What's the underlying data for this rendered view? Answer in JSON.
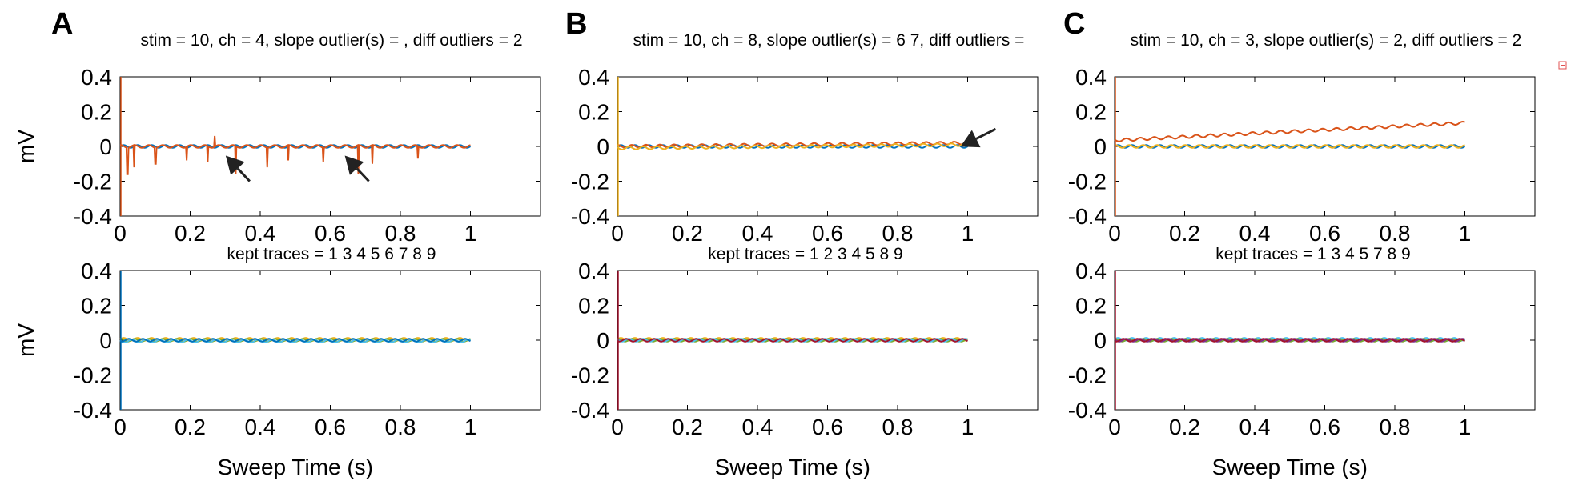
{
  "chart_data": [
    {
      "panel": "A",
      "type": "line",
      "title": "stim = 10, ch = 4, slope outlier(s) =  , diff outliers = 2",
      "ylabel": "mV",
      "xlim": [
        0,
        1.2
      ],
      "ylim": [
        -0.4,
        0.4
      ],
      "xticks": [
        "0",
        "0.2",
        "0.4",
        "0.6",
        "0.8",
        "1"
      ],
      "yticks": [
        "0.4",
        "0.2",
        "0",
        "-0.2",
        "-0.4"
      ],
      "x_range": [
        0,
        1
      ],
      "series": [
        {
          "color": "#0072BD",
          "baseline": 0.0,
          "drift": 0.0,
          "spikes": []
        },
        {
          "color": "#D95319",
          "baseline": 0.0,
          "drift": 0.0,
          "spikes": [
            [
              0.02,
              -0.16
            ],
            [
              0.04,
              -0.12
            ],
            [
              0.1,
              -0.1
            ],
            [
              0.19,
              -0.08
            ],
            [
              0.25,
              -0.09
            ],
            [
              0.27,
              0.06
            ],
            [
              0.33,
              -0.16
            ],
            [
              0.42,
              -0.12
            ],
            [
              0.48,
              -0.08
            ],
            [
              0.58,
              -0.09
            ],
            [
              0.68,
              -0.16
            ],
            [
              0.72,
              -0.1
            ],
            [
              0.85,
              -0.07
            ]
          ]
        }
      ],
      "arrows": [
        [
          0.37,
          -0.2
        ],
        [
          0.71,
          -0.2
        ]
      ]
    },
    {
      "panel": "A",
      "type": "line",
      "title": "kept traces = 1 3 4 5 6 7 8 9",
      "ylabel": "mV",
      "xlabel": "Sweep Time (s)",
      "xlim": [
        0,
        1.2
      ],
      "ylim": [
        -0.4,
        0.4
      ],
      "xticks": [
        "0",
        "0.2",
        "0.4",
        "0.6",
        "0.8",
        "1"
      ],
      "yticks": [
        "0.4",
        "0.2",
        "0",
        "-0.2",
        "-0.4"
      ],
      "x_range": [
        0,
        1
      ],
      "series": [
        {
          "color": "#EDB120",
          "baseline": 0.005,
          "drift": 0.0,
          "spikes": []
        },
        {
          "color": "#77AC30",
          "baseline": 0.0,
          "drift": 0.0,
          "spikes": []
        },
        {
          "color": "#4DBEEE",
          "baseline": -0.005,
          "drift": 0.0,
          "spikes": []
        },
        {
          "color": "#0072BD",
          "baseline": 0.0,
          "drift": 0.0,
          "spikes": []
        }
      ]
    },
    {
      "panel": "B",
      "type": "line",
      "title": "stim = 10, ch = 8, slope outlier(s) = 6 7, diff outliers =",
      "xlim": [
        0,
        1.2
      ],
      "ylim": [
        -0.4,
        0.4
      ],
      "xticks": [
        "0",
        "0.2",
        "0.4",
        "0.6",
        "0.8",
        "1"
      ],
      "yticks": [
        "0.4",
        "0.2",
        "0",
        "-0.2",
        "-0.4"
      ],
      "x_range": [
        0,
        1
      ],
      "series": [
        {
          "color": "#0072BD",
          "baseline": 0.0,
          "drift": 0.0,
          "spikes": []
        },
        {
          "color": "#D95319",
          "baseline": 0.0,
          "drift": 0.02,
          "spikes": []
        },
        {
          "color": "#EDB120",
          "baseline": -0.01,
          "drift": 0.02,
          "spikes": []
        }
      ],
      "arrows": [
        [
          1.08,
          0.1
        ]
      ]
    },
    {
      "panel": "B",
      "type": "line",
      "title": "kept traces = 1 2 3 4 5 8 9",
      "xlabel": "Sweep Time (s)",
      "xlim": [
        0,
        1.2
      ],
      "ylim": [
        -0.4,
        0.4
      ],
      "xticks": [
        "0",
        "0.2",
        "0.4",
        "0.6",
        "0.8",
        "1"
      ],
      "yticks": [
        "0.4",
        "0.2",
        "0",
        "-0.2",
        "-0.4"
      ],
      "x_range": [
        0,
        1
      ],
      "series": [
        {
          "color": "#EDB120",
          "baseline": 0.005,
          "drift": 0.0,
          "spikes": []
        },
        {
          "color": "#77AC30",
          "baseline": 0.0,
          "drift": 0.0,
          "spikes": []
        },
        {
          "color": "#4DBEEE",
          "baseline": 0.0,
          "drift": 0.0,
          "spikes": []
        },
        {
          "color": "#A2142F",
          "baseline": 0.0,
          "drift": 0.0,
          "spikes": []
        }
      ]
    },
    {
      "panel": "C",
      "type": "line",
      "title": "stim = 10, ch = 3, slope outlier(s) = 2, diff outliers = 2",
      "xlim": [
        0,
        1.2
      ],
      "ylim": [
        -0.4,
        0.4
      ],
      "xticks": [
        "0",
        "0.2",
        "0.4",
        "0.6",
        "0.8",
        "1"
      ],
      "yticks": [
        "0.4",
        "0.2",
        "0",
        "-0.2",
        "-0.4"
      ],
      "x_range": [
        0,
        1
      ],
      "series": [
        {
          "color": "#0072BD",
          "baseline": 0.0,
          "drift": 0.0,
          "spikes": []
        },
        {
          "color": "#EDB120",
          "baseline": 0.0,
          "drift": 0.0,
          "spikes": []
        },
        {
          "color": "#D95319",
          "baseline": 0.035,
          "drift": 0.1,
          "spikes": []
        }
      ]
    },
    {
      "panel": "C",
      "type": "line",
      "title": "kept traces = 1 3 4 5 7 8 9",
      "xlabel": "Sweep Time (s)",
      "xlim": [
        0,
        1.2
      ],
      "ylim": [
        -0.4,
        0.4
      ],
      "xticks": [
        "0",
        "0.2",
        "0.4",
        "0.6",
        "0.8",
        "1"
      ],
      "yticks": [
        "0.4",
        "0.2",
        "0",
        "-0.2",
        "-0.4"
      ],
      "x_range": [
        0,
        1
      ],
      "series": [
        {
          "color": "#4DBEEE",
          "baseline": 0.005,
          "drift": 0.0,
          "spikes": []
        },
        {
          "color": "#77AC30",
          "baseline": 0.0,
          "drift": 0.0,
          "spikes": []
        },
        {
          "color": "#7E2F8E",
          "baseline": 0.0,
          "drift": 0.0,
          "spikes": []
        },
        {
          "color": "#A2142F",
          "baseline": 0.0,
          "drift": 0.0,
          "spikes": []
        }
      ]
    }
  ],
  "panel_letters": [
    "A",
    "B",
    "C"
  ]
}
